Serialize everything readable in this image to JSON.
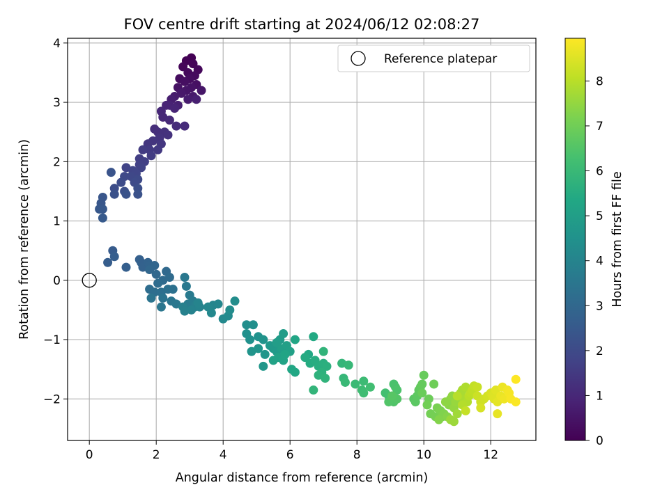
{
  "chart_data": {
    "type": "scatter",
    "title": "FOV centre drift starting at 2024/06/12 02:08:27",
    "xlabel": "Angular distance from reference (arcmin)",
    "ylabel": "Rotation from reference (arcmin)",
    "xlim": [
      -0.65,
      13.35
    ],
    "ylim": [
      -2.7,
      4.08
    ],
    "xticks": [
      0,
      2,
      4,
      6,
      8,
      10,
      12
    ],
    "yticks": [
      -2,
      -1,
      0,
      1,
      2,
      3,
      4
    ],
    "grid": true,
    "legend": {
      "position": "top-right",
      "entries": [
        "Reference platepar"
      ]
    },
    "reference_point": {
      "x": 0,
      "y": 0,
      "label": "Reference platepar"
    },
    "colorbar": {
      "label": "Hours from first FF file",
      "colormap": "viridis",
      "range": [
        0,
        8.95
      ],
      "ticks": [
        0,
        1,
        2,
        3,
        4,
        5,
        6,
        7,
        8
      ]
    },
    "series": [
      {
        "points": [
          [
            3.05,
            3.75
          ],
          [
            2.9,
            3.7
          ],
          [
            3.1,
            3.65
          ],
          [
            2.8,
            3.6
          ],
          [
            3.25,
            3.55
          ],
          [
            2.95,
            3.5
          ],
          [
            3.15,
            3.45
          ],
          [
            2.7,
            3.4
          ],
          [
            3.0,
            3.4
          ],
          [
            2.85,
            3.35
          ],
          [
            3.2,
            3.3
          ],
          [
            2.65,
            3.25
          ],
          [
            3.05,
            3.25
          ],
          [
            2.9,
            3.2
          ],
          [
            3.35,
            3.2
          ],
          [
            2.75,
            3.15
          ],
          [
            3.1,
            3.1
          ],
          [
            2.55,
            3.1
          ],
          [
            2.95,
            3.05
          ],
          [
            2.45,
            3.05
          ],
          [
            3.2,
            3.05
          ],
          [
            2.65,
            2.95
          ],
          [
            2.4,
            2.95
          ],
          [
            2.3,
            2.95
          ],
          [
            2.55,
            2.9
          ],
          [
            2.15,
            2.85
          ],
          [
            2.2,
            2.75
          ],
          [
            2.4,
            2.7
          ],
          [
            2.85,
            2.6
          ],
          [
            2.6,
            2.6
          ],
          [
            1.95,
            2.55
          ],
          [
            2.05,
            2.5
          ],
          [
            2.25,
            2.5
          ],
          [
            2.35,
            2.45
          ],
          [
            2.1,
            2.4
          ],
          [
            1.9,
            2.35
          ],
          [
            1.75,
            2.3
          ],
          [
            2.15,
            2.3
          ],
          [
            2.05,
            2.2
          ],
          [
            1.8,
            2.2
          ],
          [
            1.6,
            2.2
          ],
          [
            1.85,
            2.1
          ],
          [
            1.5,
            2.05
          ],
          [
            1.65,
            2.0
          ],
          [
            1.5,
            1.95
          ],
          [
            1.55,
            1.9
          ],
          [
            1.1,
            1.9
          ],
          [
            1.3,
            1.85
          ],
          [
            1.4,
            1.8
          ],
          [
            1.25,
            1.75
          ],
          [
            1.05,
            1.75
          ],
          [
            1.45,
            1.7
          ],
          [
            1.35,
            1.65
          ],
          [
            0.95,
            1.65
          ],
          [
            0.75,
            1.55
          ],
          [
            1.45,
            1.55
          ],
          [
            1.05,
            1.5
          ],
          [
            0.75,
            1.45
          ],
          [
            1.45,
            1.45
          ],
          [
            1.1,
            1.45
          ],
          [
            0.65,
            1.82
          ],
          [
            0.4,
            1.4
          ],
          [
            0.35,
            1.3
          ],
          [
            0.3,
            1.2
          ],
          [
            0.4,
            1.2
          ],
          [
            0.4,
            1.05
          ],
          [
            0.7,
            0.5
          ],
          [
            0.55,
            0.3
          ],
          [
            0.75,
            0.4
          ],
          [
            1.1,
            0.22
          ],
          [
            1.5,
            0.35
          ],
          [
            1.55,
            0.3
          ],
          [
            1.6,
            0.22
          ],
          [
            1.75,
            0.3
          ],
          [
            1.8,
            0.25
          ],
          [
            1.95,
            0.25
          ],
          [
            1.8,
            0.18
          ],
          [
            2.0,
            0.1
          ],
          [
            2.3,
            0.15
          ],
          [
            2.2,
            0.0
          ],
          [
            2.4,
            0.05
          ],
          [
            2.05,
            -0.05
          ],
          [
            1.8,
            -0.15
          ],
          [
            1.95,
            -0.2
          ],
          [
            2.15,
            -0.2
          ],
          [
            2.35,
            -0.15
          ],
          [
            2.5,
            -0.15
          ],
          [
            2.2,
            -0.3
          ],
          [
            1.85,
            -0.3
          ],
          [
            2.45,
            -0.35
          ],
          [
            2.15,
            -0.45
          ],
          [
            2.6,
            -0.4
          ],
          [
            2.85,
            0.05
          ],
          [
            2.9,
            -0.1
          ],
          [
            3.0,
            -0.25
          ],
          [
            2.95,
            -0.4
          ],
          [
            3.1,
            -0.35
          ],
          [
            3.15,
            -0.45
          ],
          [
            3.2,
            -0.4
          ],
          [
            2.8,
            -0.45
          ],
          [
            2.85,
            -0.52
          ],
          [
            3.05,
            -0.5
          ],
          [
            3.3,
            -0.45
          ],
          [
            3.25,
            -0.38
          ],
          [
            3.7,
            -0.42
          ],
          [
            3.85,
            -0.4
          ],
          [
            3.55,
            -0.45
          ],
          [
            3.65,
            -0.55
          ],
          [
            4.0,
            -0.65
          ],
          [
            4.15,
            -0.6
          ],
          [
            4.2,
            -0.5
          ],
          [
            4.35,
            -0.35
          ],
          [
            4.7,
            -0.75
          ],
          [
            4.9,
            -0.75
          ],
          [
            4.7,
            -0.9
          ],
          [
            4.8,
            -1.0
          ],
          [
            5.05,
            -0.95
          ],
          [
            5.2,
            -1.0
          ],
          [
            4.85,
            -1.2
          ],
          [
            5.05,
            -1.15
          ],
          [
            5.25,
            -1.25
          ],
          [
            5.2,
            -1.45
          ],
          [
            5.4,
            -1.1
          ],
          [
            5.5,
            -1.15
          ],
          [
            5.6,
            -1.2
          ],
          [
            5.7,
            -1.0
          ],
          [
            5.8,
            -0.9
          ],
          [
            5.6,
            -1.05
          ],
          [
            5.75,
            -1.15
          ],
          [
            5.9,
            -1.1
          ],
          [
            6.0,
            -1.2
          ],
          [
            5.65,
            -1.3
          ],
          [
            5.5,
            -1.35
          ],
          [
            5.8,
            -1.35
          ],
          [
            5.85,
            -1.25
          ],
          [
            6.15,
            -1.0
          ],
          [
            6.05,
            -1.5
          ],
          [
            6.15,
            -1.55
          ],
          [
            6.55,
            -1.25
          ],
          [
            6.7,
            -0.95
          ],
          [
            6.45,
            -1.3
          ],
          [
            6.6,
            -1.4
          ],
          [
            6.75,
            -1.35
          ],
          [
            6.85,
            -1.45
          ],
          [
            7.0,
            -1.4
          ],
          [
            7.1,
            -1.45
          ],
          [
            6.95,
            -1.55
          ],
          [
            6.85,
            -1.6
          ],
          [
            7.05,
            -1.65
          ],
          [
            7.0,
            -1.2
          ],
          [
            6.7,
            -1.85
          ],
          [
            7.55,
            -1.4
          ],
          [
            7.6,
            -1.65
          ],
          [
            7.75,
            -1.43
          ],
          [
            7.65,
            -1.72
          ],
          [
            7.95,
            -1.75
          ],
          [
            8.2,
            -1.7
          ],
          [
            8.15,
            -1.85
          ],
          [
            8.2,
            -1.9
          ],
          [
            8.4,
            -1.8
          ],
          [
            8.85,
            -1.9
          ],
          [
            8.95,
            -1.95
          ],
          [
            9.0,
            -2.0
          ],
          [
            9.1,
            -1.75
          ],
          [
            9.15,
            -1.8
          ],
          [
            9.2,
            -1.85
          ],
          [
            9.1,
            -2.05
          ],
          [
            8.95,
            -2.05
          ],
          [
            9.2,
            -2.0
          ],
          [
            9.05,
            -1.95
          ],
          [
            9.7,
            -2.0
          ],
          [
            9.75,
            -2.05
          ],
          [
            9.8,
            -1.95
          ],
          [
            9.85,
            -1.85
          ],
          [
            9.9,
            -1.8
          ],
          [
            9.95,
            -1.75
          ],
          [
            10.0,
            -1.6
          ],
          [
            9.95,
            -1.9
          ],
          [
            10.15,
            -2.0
          ],
          [
            10.3,
            -1.75
          ],
          [
            10.1,
            -2.1
          ],
          [
            10.2,
            -2.25
          ],
          [
            10.35,
            -2.3
          ],
          [
            10.4,
            -2.15
          ],
          [
            10.5,
            -2.2
          ],
          [
            10.55,
            -2.3
          ],
          [
            10.6,
            -2.25
          ],
          [
            10.45,
            -2.35
          ],
          [
            10.7,
            -2.3
          ],
          [
            10.75,
            -2.1
          ],
          [
            10.8,
            -2.0
          ],
          [
            10.65,
            -2.05
          ],
          [
            10.85,
            -1.95
          ],
          [
            10.9,
            -2.15
          ],
          [
            10.95,
            -2.05
          ],
          [
            10.8,
            -2.35
          ],
          [
            10.9,
            -2.38
          ],
          [
            11.0,
            -2.25
          ],
          [
            11.05,
            -1.95
          ],
          [
            11.1,
            -1.9
          ],
          [
            11.15,
            -1.85
          ],
          [
            11.2,
            -2.0
          ],
          [
            11.25,
            -1.8
          ],
          [
            11.3,
            -2.05
          ],
          [
            11.15,
            -2.1
          ],
          [
            11.0,
            -1.95
          ],
          [
            11.35,
            -1.95
          ],
          [
            11.4,
            -1.9
          ],
          [
            11.45,
            -1.85
          ],
          [
            11.5,
            -1.78
          ],
          [
            11.25,
            -2.2
          ],
          [
            11.6,
            -1.8
          ],
          [
            11.6,
            -1.95
          ],
          [
            11.7,
            -2.05
          ],
          [
            11.8,
            -2.0
          ],
          [
            11.9,
            -1.95
          ],
          [
            11.7,
            -2.15
          ],
          [
            12.0,
            -1.9
          ],
          [
            12.05,
            -1.95
          ],
          [
            12.1,
            -2.0
          ],
          [
            12.15,
            -1.85
          ],
          [
            12.2,
            -2.05
          ],
          [
            12.2,
            -2.25
          ],
          [
            12.3,
            -1.95
          ],
          [
            12.35,
            -1.8
          ],
          [
            12.4,
            -2.0
          ],
          [
            12.5,
            -1.85
          ],
          [
            12.55,
            -1.9
          ],
          [
            12.6,
            -2.0
          ],
          [
            12.75,
            -2.05
          ],
          [
            12.75,
            -1.67
          ]
        ],
        "hours_range": [
          0,
          8.95
        ]
      }
    ]
  }
}
